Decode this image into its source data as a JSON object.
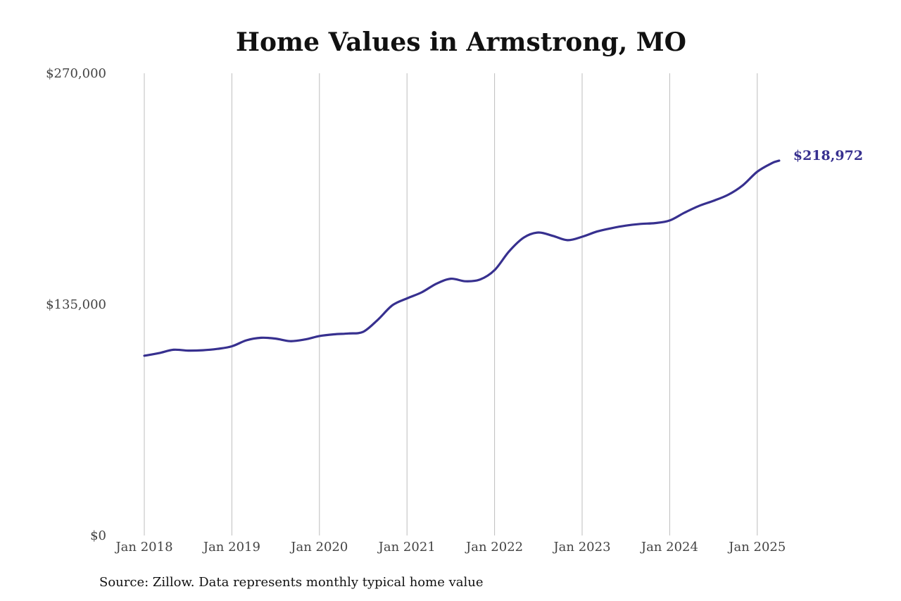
{
  "colors": {
    "line": "#37308f",
    "grid": "#bdbdbd",
    "text": "#111111",
    "tick_text": "#444444"
  },
  "chart_data": {
    "type": "line",
    "title": "Home Values in Armstrong, MO",
    "xlabel": "",
    "ylabel": "",
    "x_ticks": [
      {
        "label": "Jan 2018",
        "value": 2018.0
      },
      {
        "label": "Jan 2019",
        "value": 2019.0
      },
      {
        "label": "Jan 2020",
        "value": 2020.0
      },
      {
        "label": "Jan 2021",
        "value": 2021.0
      },
      {
        "label": "Jan 2022",
        "value": 2022.0
      },
      {
        "label": "Jan 2023",
        "value": 2023.0
      },
      {
        "label": "Jan 2024",
        "value": 2024.0
      },
      {
        "label": "Jan 2025",
        "value": 2025.0
      }
    ],
    "y_ticks": [
      {
        "label": "$0",
        "value": 0
      },
      {
        "label": "$135,000",
        "value": 135000
      },
      {
        "label": "$270,000",
        "value": 270000
      }
    ],
    "ylim": [
      0,
      270000
    ],
    "xlim": [
      2018.0,
      2025.25
    ],
    "grid": "vertical",
    "series": [
      {
        "end_label": "$218,972",
        "points": [
          {
            "x": "Jan 2018",
            "y": 105000
          },
          {
            "x": "Mar 2018",
            "y": 106500
          },
          {
            "x": "May 2018",
            "y": 108500
          },
          {
            "x": "Jul 2018",
            "y": 108000
          },
          {
            "x": "Sep 2018",
            "y": 108200
          },
          {
            "x": "Nov 2018",
            "y": 109000
          },
          {
            "x": "Jan 2019",
            "y": 110500
          },
          {
            "x": "Mar 2019",
            "y": 114000
          },
          {
            "x": "May 2019",
            "y": 115500
          },
          {
            "x": "Jul 2019",
            "y": 115000
          },
          {
            "x": "Sep 2019",
            "y": 113500
          },
          {
            "x": "Nov 2019",
            "y": 114500
          },
          {
            "x": "Jan 2020",
            "y": 116500
          },
          {
            "x": "Mar 2020",
            "y": 117500
          },
          {
            "x": "May 2020",
            "y": 118000
          },
          {
            "x": "Jul 2020",
            "y": 119000
          },
          {
            "x": "Sep 2020",
            "y": 126000
          },
          {
            "x": "Nov 2020",
            "y": 134500
          },
          {
            "x": "Jan 2021",
            "y": 138500
          },
          {
            "x": "Mar 2021",
            "y": 142000
          },
          {
            "x": "May 2021",
            "y": 147000
          },
          {
            "x": "Jul 2021",
            "y": 150000
          },
          {
            "x": "Sep 2021",
            "y": 148500
          },
          {
            "x": "Nov 2021",
            "y": 149500
          },
          {
            "x": "Jan 2022",
            "y": 155000
          },
          {
            "x": "Mar 2022",
            "y": 166000
          },
          {
            "x": "May 2022",
            "y": 174000
          },
          {
            "x": "Jul 2022",
            "y": 177000
          },
          {
            "x": "Sep 2022",
            "y": 175000
          },
          {
            "x": "Nov 2022",
            "y": 172500
          },
          {
            "x": "Jan 2023",
            "y": 174500
          },
          {
            "x": "Mar 2023",
            "y": 177500
          },
          {
            "x": "May 2023",
            "y": 179500
          },
          {
            "x": "Jul 2023",
            "y": 181000
          },
          {
            "x": "Sep 2023",
            "y": 182000
          },
          {
            "x": "Nov 2023",
            "y": 182500
          },
          {
            "x": "Jan 2024",
            "y": 184000
          },
          {
            "x": "Mar 2024",
            "y": 188500
          },
          {
            "x": "May 2024",
            "y": 192500
          },
          {
            "x": "Jul 2024",
            "y": 195500
          },
          {
            "x": "Sep 2024",
            "y": 199000
          },
          {
            "x": "Nov 2024",
            "y": 204500
          },
          {
            "x": "Jan 2025",
            "y": 212500
          },
          {
            "x": "Mar 2025",
            "y": 217500
          },
          {
            "x": "Apr 2025",
            "y": 218972
          }
        ]
      }
    ]
  },
  "source_note": "Source: Zillow. Data represents monthly typical home value"
}
